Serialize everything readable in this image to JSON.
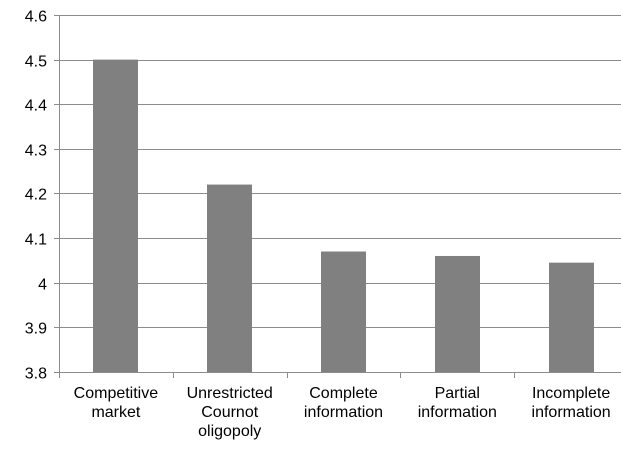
{
  "chart_data": {
    "type": "bar",
    "categories": [
      [
        "Competitive",
        "market"
      ],
      [
        "Unrestricted",
        "Cournot",
        "oligopoly"
      ],
      [
        "Complete",
        "information"
      ],
      [
        "Partial",
        "information"
      ],
      [
        "Incomplete",
        "information"
      ]
    ],
    "values": [
      4.5,
      4.22,
      4.07,
      4.06,
      4.045
    ],
    "title": "",
    "xlabel": "",
    "ylabel": "",
    "ylim": [
      3.8,
      4.6
    ],
    "yticks": [
      "3.8",
      "3.9",
      "4",
      "4.1",
      "4.2",
      "4.3",
      "4.4",
      "4.5",
      "4.6"
    ],
    "grid": true,
    "legend": "none",
    "colors": {
      "bar": "#808080",
      "grid": "#8c8c8c",
      "axis": "#8c8c8c",
      "text": "#000000"
    }
  }
}
